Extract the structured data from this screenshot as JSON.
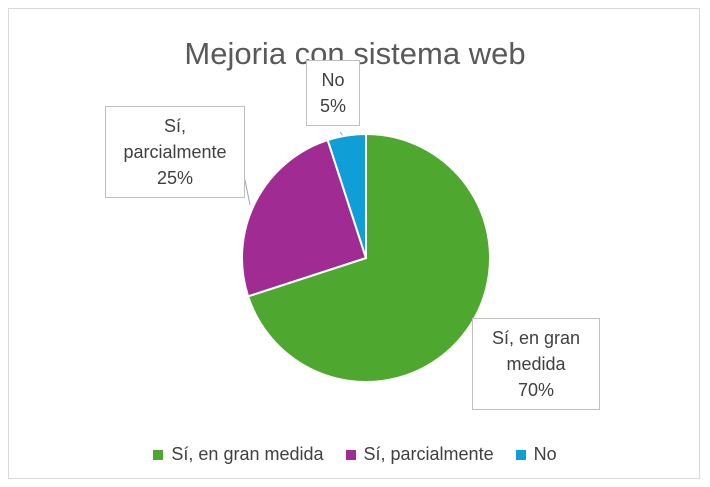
{
  "chart_data": {
    "type": "pie",
    "title": "Mejoria con sistema web",
    "categories": [
      "Sí, en gran medida",
      "Sí, parcialmente",
      "No"
    ],
    "values": [
      70,
      25,
      5
    ],
    "value_labels": [
      "70%",
      "25%",
      "5%"
    ],
    "colors": [
      "#4ea72e",
      "#a02b93",
      "#0f9ed5"
    ],
    "legend": "bottom"
  }
}
